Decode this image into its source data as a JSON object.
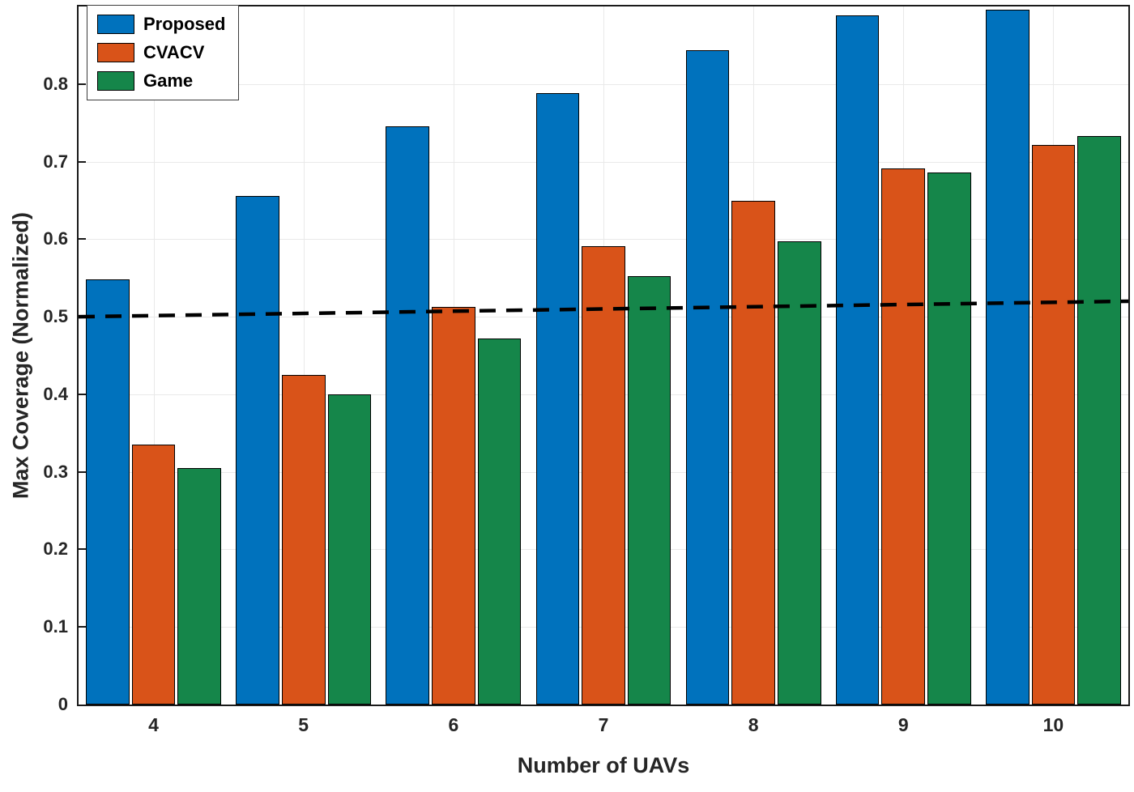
{
  "chart_data": {
    "type": "bar",
    "title": "",
    "xlabel": "Number of UAVs",
    "ylabel": "Max Coverage (Normalized)",
    "categories": [
      "4",
      "5",
      "6",
      "7",
      "8",
      "9",
      "10"
    ],
    "series": [
      {
        "name": "Proposed",
        "color": "#0072BD",
        "values": [
          0.548,
          0.656,
          0.746,
          0.788,
          0.844,
          0.889,
          0.896
        ]
      },
      {
        "name": "CVACV",
        "color": "#D95319",
        "values": [
          0.335,
          0.425,
          0.513,
          0.591,
          0.649,
          0.691,
          0.721
        ]
      },
      {
        "name": "Game",
        "color": "#15864A",
        "values": [
          0.305,
          0.4,
          0.472,
          0.552,
          0.597,
          0.686,
          0.733
        ]
      }
    ],
    "yticks": [
      "0",
      "0.1",
      "0.2",
      "0.3",
      "0.4",
      "0.5",
      "0.6",
      "0.7",
      "0.8"
    ],
    "ylim": [
      0,
      0.9
    ],
    "grid": true,
    "legend_position": "top-left",
    "reference_line": {
      "style": "dashed",
      "color": "#000000",
      "y_start": 0.5,
      "y_end": 0.52
    },
    "axis_color": "#1a1a1a",
    "grid_color": "#e9e9e9"
  }
}
